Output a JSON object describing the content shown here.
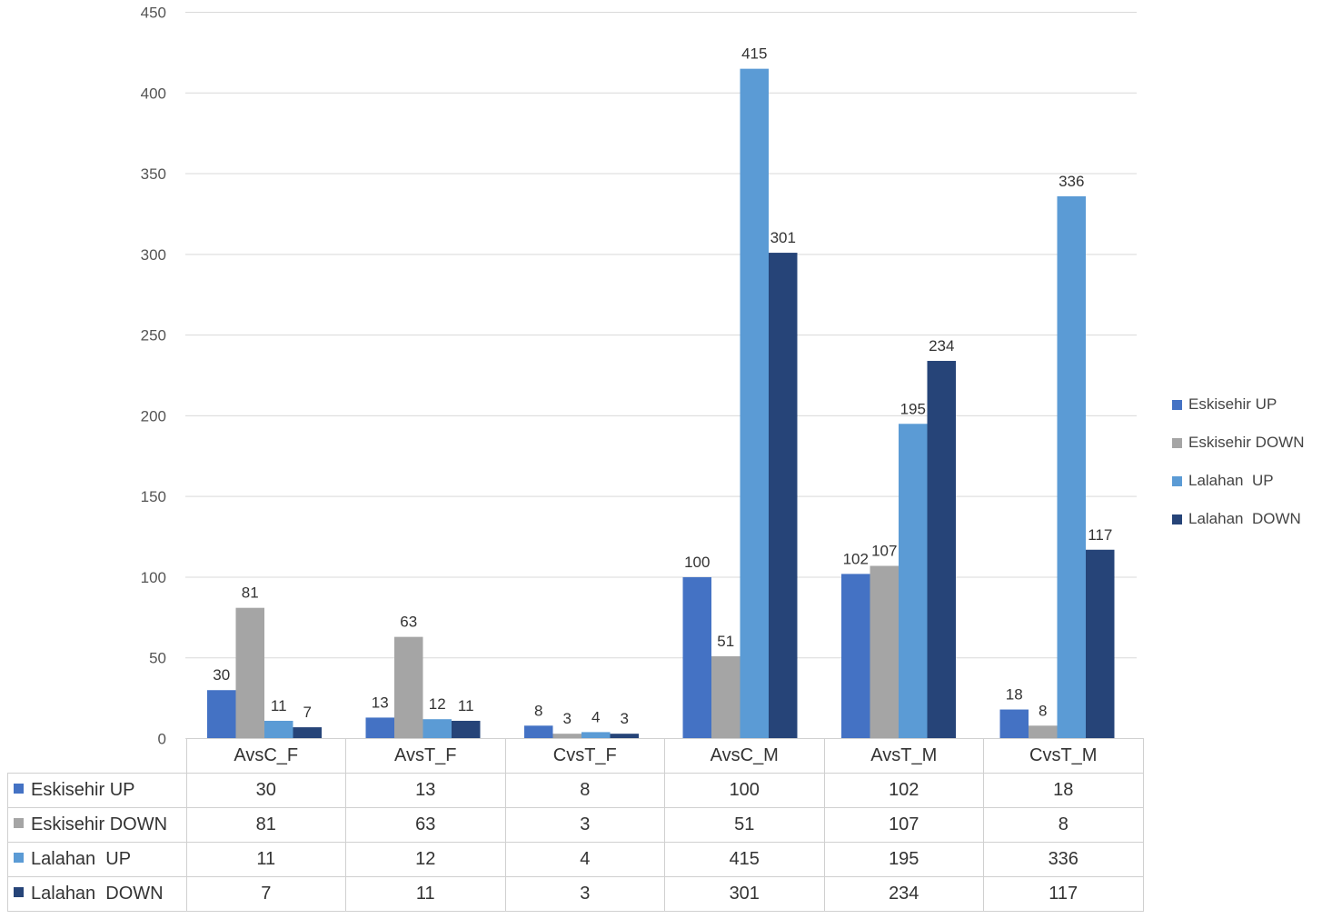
{
  "chart_data": {
    "type": "bar",
    "title": "",
    "xlabel": "",
    "ylabel": "",
    "ylim": [
      0,
      450
    ],
    "yticks": [
      0,
      50,
      100,
      150,
      200,
      250,
      300,
      350,
      400,
      450
    ],
    "categories": [
      "AvsC_F",
      "AvsT_F",
      "CvsT_F",
      "AvsC_M",
      "AvsT_M",
      "CvsT_M"
    ],
    "series": [
      {
        "name": "Eskisehir UP",
        "color": "#4472c4",
        "values": [
          30,
          13,
          8,
          100,
          102,
          18
        ]
      },
      {
        "name": "Eskisehir DOWN",
        "color": "#a5a5a5",
        "values": [
          81,
          63,
          3,
          51,
          107,
          8
        ]
      },
      {
        "name": "Lalahan  UP",
        "color": "#5b9bd5",
        "values": [
          11,
          12,
          4,
          415,
          195,
          336
        ]
      },
      {
        "name": "Lalahan  DOWN",
        "color": "#264478",
        "values": [
          7,
          11,
          3,
          301,
          234,
          117
        ]
      }
    ],
    "legend": "right",
    "grid": true,
    "data_table": true
  }
}
